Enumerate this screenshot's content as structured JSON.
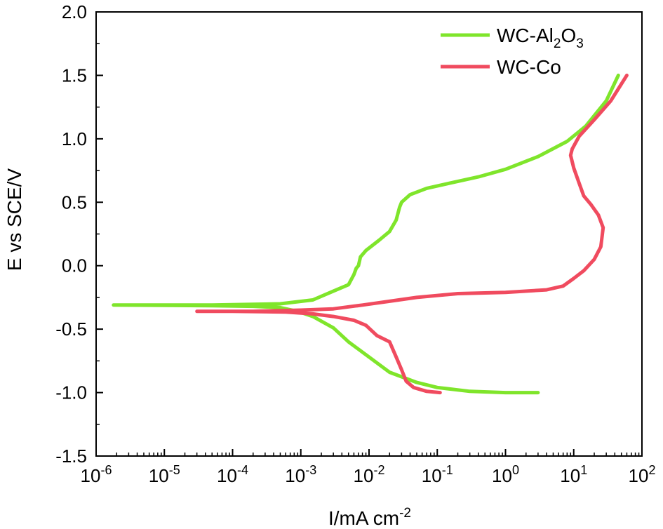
{
  "chart_data": {
    "type": "line",
    "xlabel": "I/mA cm",
    "xlabel_sup": "-2",
    "ylabel": "E vs SCE/V",
    "x_scale": "log",
    "xlim": [
      1e-06,
      100
    ],
    "ylim": [
      -1.5,
      2.0
    ],
    "x_ticks": [
      {
        "value": 1e-06,
        "base": "10",
        "exp": "-6"
      },
      {
        "value": 1e-05,
        "base": "10",
        "exp": "-5"
      },
      {
        "value": 0.0001,
        "base": "10",
        "exp": "-4"
      },
      {
        "value": 0.001,
        "base": "10",
        "exp": "-3"
      },
      {
        "value": 0.01,
        "base": "10",
        "exp": "-2"
      },
      {
        "value": 0.1,
        "base": "10",
        "exp": "-1"
      },
      {
        "value": 1,
        "base": "10",
        "exp": "0"
      },
      {
        "value": 10,
        "base": "10",
        "exp": "1"
      },
      {
        "value": 100,
        "base": "10",
        "exp": "2"
      }
    ],
    "y_ticks": [
      {
        "value": -1.5,
        "label": "-1.5"
      },
      {
        "value": -1.0,
        "label": "-1.0"
      },
      {
        "value": -0.5,
        "label": "-0.5"
      },
      {
        "value": 0.0,
        "label": "0.0"
      },
      {
        "value": 0.5,
        "label": "0.5"
      },
      {
        "value": 1.0,
        "label": "1.0"
      },
      {
        "value": 1.5,
        "label": "1.5"
      },
      {
        "value": 2.0,
        "label": "2.0"
      }
    ],
    "grid": false,
    "legend_position": "top-right",
    "series": [
      {
        "name": "WC-Al2O3",
        "legend_parts": [
          "WC-Al",
          "2",
          "O",
          "3"
        ],
        "color": "#7fe52b",
        "points": [
          [
            3.0,
            -1.0
          ],
          [
            1.0,
            -1.0
          ],
          [
            0.3,
            -0.99
          ],
          [
            0.1,
            -0.96
          ],
          [
            0.05,
            -0.92
          ],
          [
            0.02,
            -0.84
          ],
          [
            0.01,
            -0.72
          ],
          [
            0.005,
            -0.6
          ],
          [
            0.003,
            -0.49
          ],
          [
            0.0015,
            -0.4
          ],
          [
            0.0009,
            -0.36
          ],
          [
            0.0005,
            -0.33
          ],
          [
            0.0002,
            -0.32
          ],
          [
            5e-05,
            -0.315
          ],
          [
            1.8e-06,
            -0.31
          ],
          [
            5e-05,
            -0.31
          ],
          [
            0.0005,
            -0.3
          ],
          [
            0.0015,
            -0.27
          ],
          [
            0.003,
            -0.2
          ],
          [
            0.005,
            -0.15
          ],
          [
            0.006,
            -0.07
          ],
          [
            0.0065,
            -0.02
          ],
          [
            0.007,
            0.0
          ],
          [
            0.0075,
            0.07
          ],
          [
            0.009,
            0.12
          ],
          [
            0.014,
            0.2
          ],
          [
            0.02,
            0.27
          ],
          [
            0.025,
            0.36
          ],
          [
            0.028,
            0.46
          ],
          [
            0.03,
            0.5
          ],
          [
            0.04,
            0.56
          ],
          [
            0.07,
            0.61
          ],
          [
            0.15,
            0.65
          ],
          [
            0.4,
            0.7
          ],
          [
            1.0,
            0.76
          ],
          [
            3.0,
            0.86
          ],
          [
            8.0,
            0.98
          ],
          [
            15.0,
            1.1
          ],
          [
            30.0,
            1.3
          ],
          [
            45.0,
            1.5
          ]
        ]
      },
      {
        "name": "WC-Co",
        "legend_parts": [
          "WC-Co"
        ],
        "color": "#f04b5f",
        "points": [
          [
            0.11,
            -1.0
          ],
          [
            0.07,
            -0.99
          ],
          [
            0.045,
            -0.96
          ],
          [
            0.035,
            -0.91
          ],
          [
            0.03,
            -0.82
          ],
          [
            0.025,
            -0.72
          ],
          [
            0.02,
            -0.6
          ],
          [
            0.013,
            -0.55
          ],
          [
            0.009,
            -0.47
          ],
          [
            0.006,
            -0.43
          ],
          [
            0.003,
            -0.4
          ],
          [
            0.0015,
            -0.38
          ],
          [
            0.0006,
            -0.365
          ],
          [
            0.0001,
            -0.36
          ],
          [
            3e-05,
            -0.36
          ],
          [
            0.0002,
            -0.36
          ],
          [
            0.001,
            -0.35
          ],
          [
            0.003,
            -0.34
          ],
          [
            0.008,
            -0.31
          ],
          [
            0.02,
            -0.28
          ],
          [
            0.05,
            -0.25
          ],
          [
            0.2,
            -0.22
          ],
          [
            1.0,
            -0.21
          ],
          [
            4.0,
            -0.19
          ],
          [
            7.0,
            -0.16
          ],
          [
            10.0,
            -0.1
          ],
          [
            14.0,
            -0.04
          ],
          [
            20.0,
            0.05
          ],
          [
            25.0,
            0.15
          ],
          [
            27.0,
            0.3
          ],
          [
            23.0,
            0.4
          ],
          [
            18.0,
            0.48
          ],
          [
            14.0,
            0.55
          ],
          [
            12.0,
            0.65
          ],
          [
            10.0,
            0.77
          ],
          [
            9.0,
            0.87
          ],
          [
            9.5,
            0.92
          ],
          [
            12.0,
            1.02
          ],
          [
            20.0,
            1.15
          ],
          [
            35.0,
            1.3
          ],
          [
            60.0,
            1.5
          ]
        ]
      }
    ]
  }
}
